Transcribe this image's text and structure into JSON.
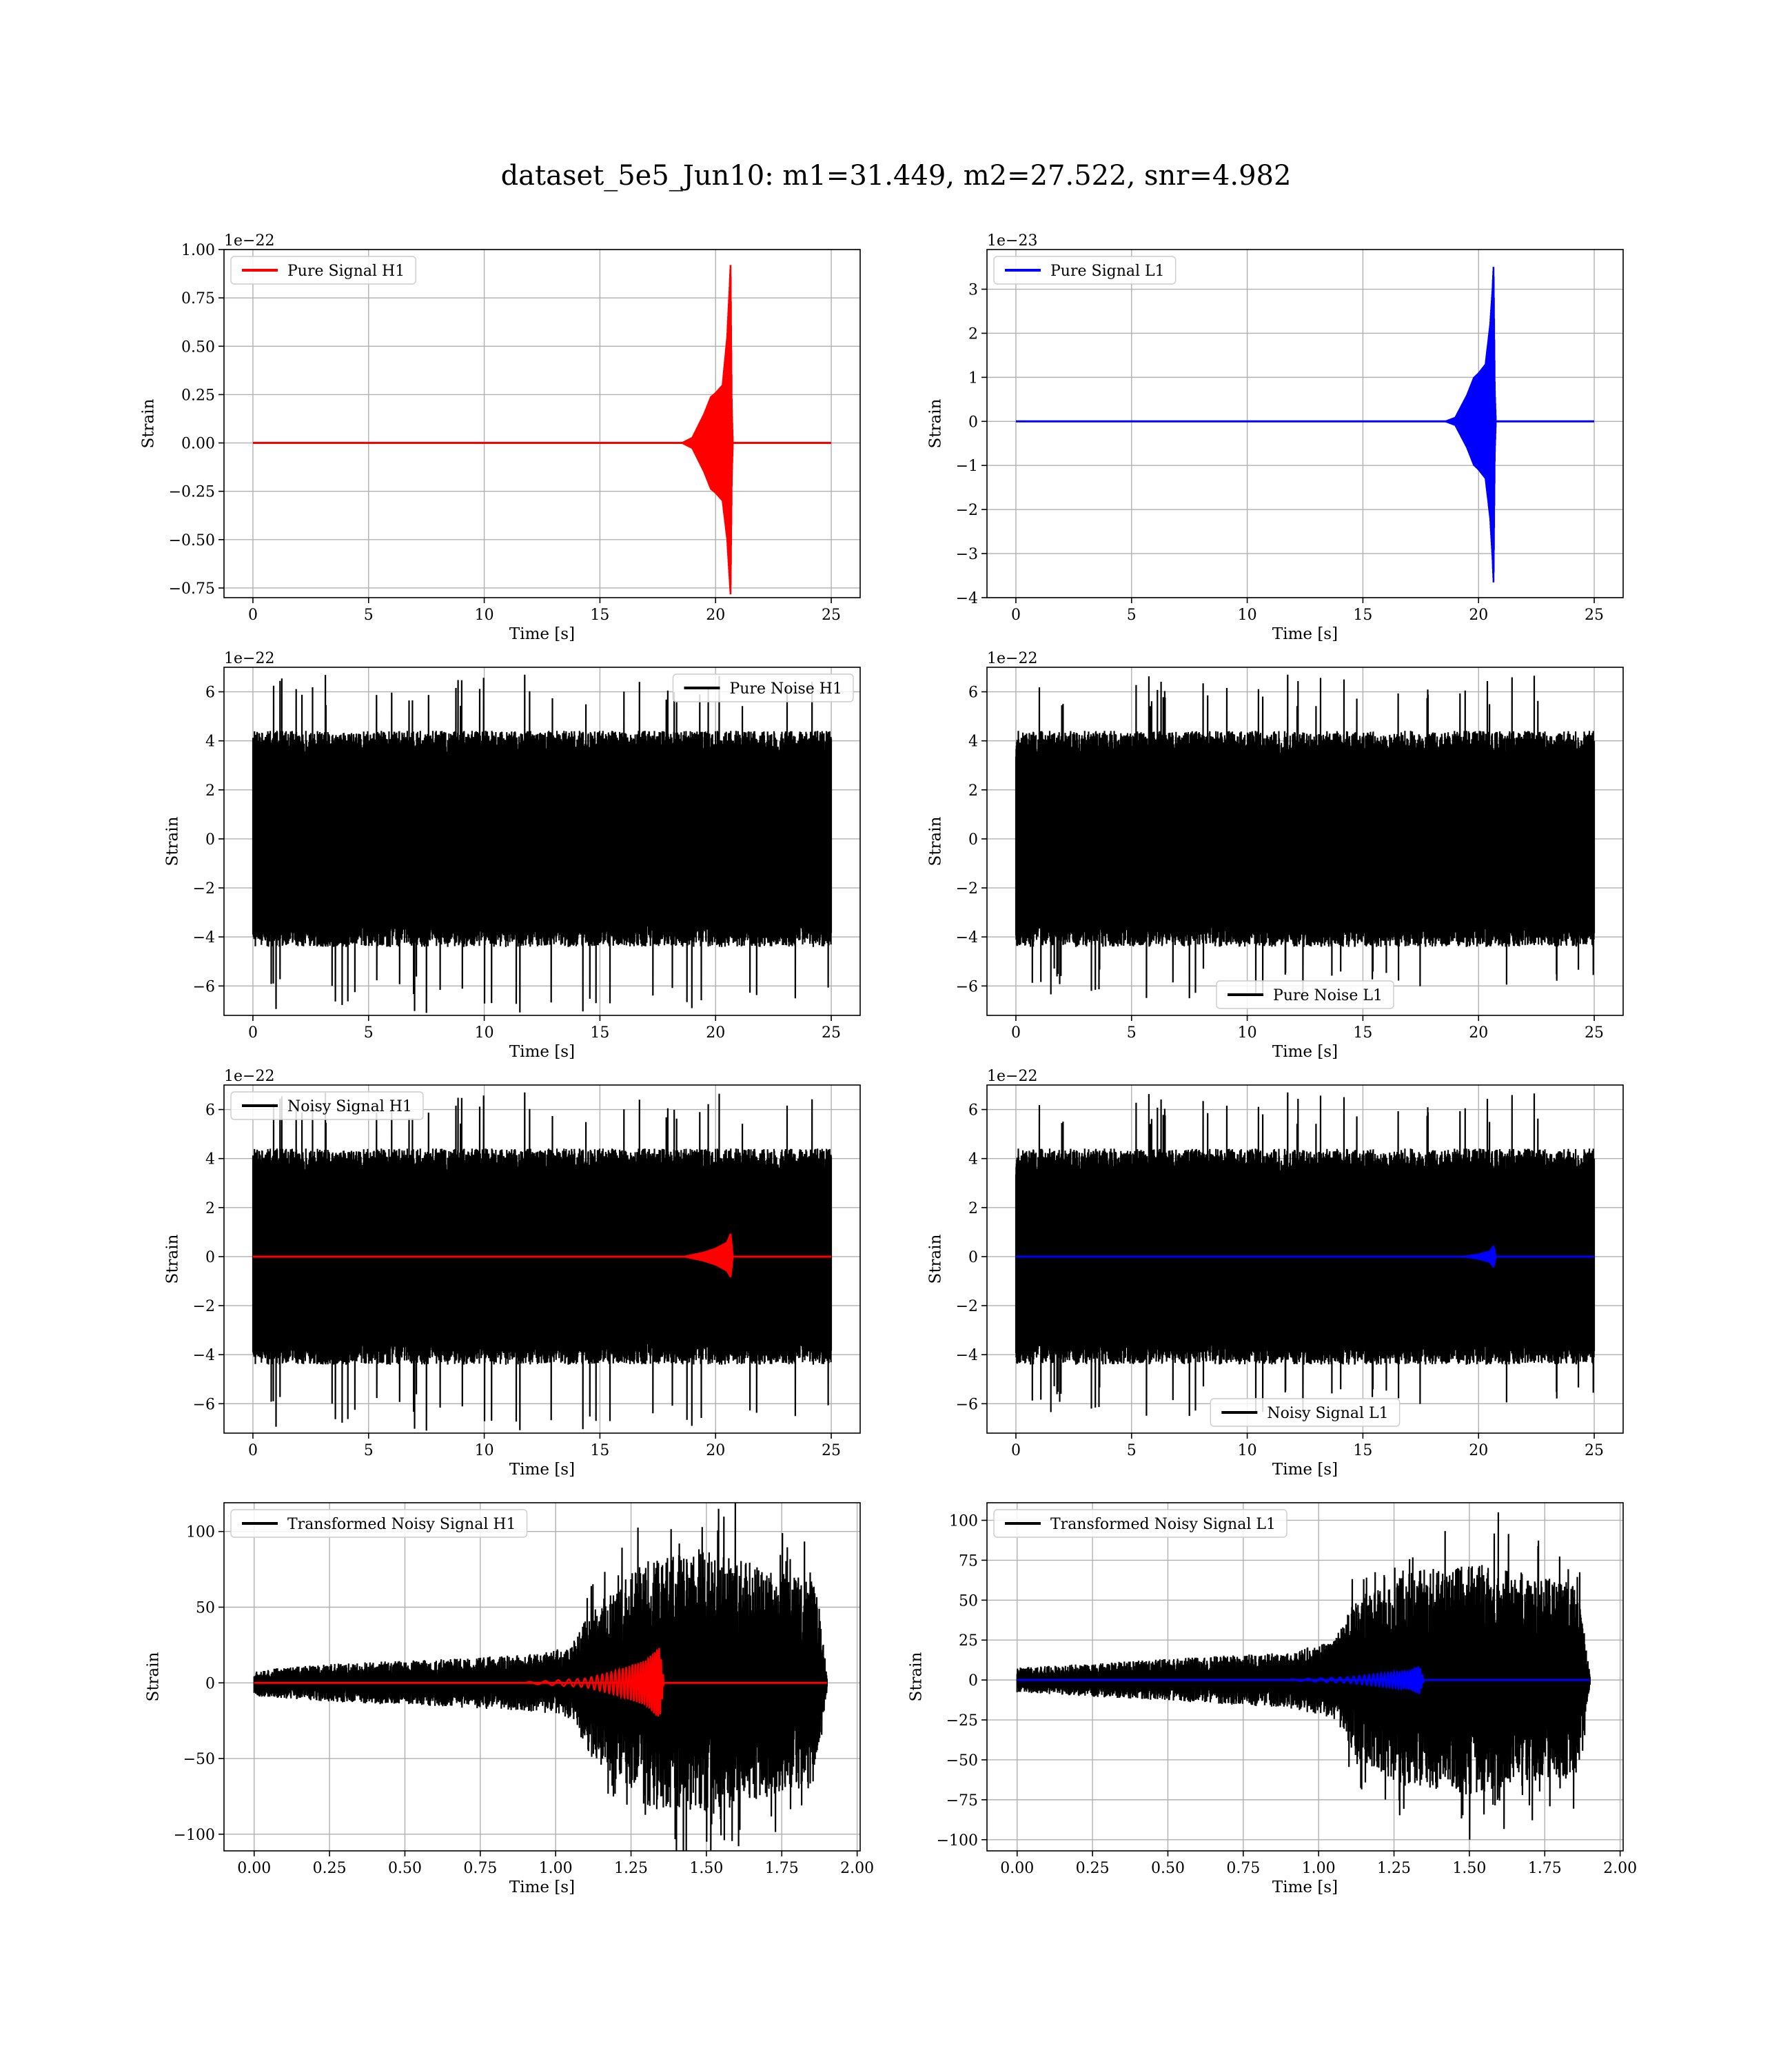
{
  "figure": {
    "title": "dataset_5e5_Jun10: m1=31.449, m2=27.522, snr=4.982"
  },
  "colors": {
    "h1": "#ff0000",
    "l1": "#0000ff",
    "noise": "#000000",
    "grid": "#b0b0b0"
  },
  "chart_data": [
    {
      "id": "pure-signal-h1",
      "type": "line",
      "row": 0,
      "col": 0,
      "xlabel": "Time [s]",
      "ylabel": "Strain",
      "offset_text": "1e−22",
      "xlim": [
        -1.25,
        26.25
      ],
      "ylim": [
        -0.8,
        1.0
      ],
      "xticks": [
        0,
        5,
        10,
        15,
        20,
        25
      ],
      "xtick_labels": [
        "0",
        "5",
        "10",
        "15",
        "20",
        "25"
      ],
      "yticks": [
        -0.75,
        -0.5,
        -0.25,
        0.0,
        0.25,
        0.5,
        0.75,
        1.0
      ],
      "ytick_labels": [
        "−0.75",
        "−0.50",
        "−0.25",
        "0.00",
        "0.25",
        "0.50",
        "0.75",
        "1.00"
      ],
      "legend": {
        "position": "upper left"
      },
      "series": [
        {
          "name": "Pure Signal H1",
          "kind": "chirp",
          "color": "h1",
          "x": [
            0,
            25
          ],
          "merger_time": 20.65,
          "envelope_x": [
            18.5,
            19.0,
            19.5,
            19.8,
            20.0,
            20.3,
            20.5,
            20.6,
            20.65,
            20.7,
            20.75
          ],
          "envelope_hi": [
            0.0,
            0.03,
            0.15,
            0.24,
            0.26,
            0.3,
            0.55,
            0.8,
            0.93,
            0.2,
            0.0
          ],
          "envelope_lo": [
            0.0,
            -0.03,
            -0.15,
            -0.24,
            -0.26,
            -0.3,
            -0.5,
            -0.7,
            -0.79,
            -0.2,
            0.0
          ]
        }
      ]
    },
    {
      "id": "pure-signal-l1",
      "type": "line",
      "row": 0,
      "col": 1,
      "xlabel": "Time [s]",
      "ylabel": "Strain",
      "offset_text": "1e−23",
      "xlim": [
        -1.25,
        26.25
      ],
      "ylim": [
        -4.0,
        3.9
      ],
      "xticks": [
        0,
        5,
        10,
        15,
        20,
        25
      ],
      "xtick_labels": [
        "0",
        "5",
        "10",
        "15",
        "20",
        "25"
      ],
      "yticks": [
        -4,
        -3,
        -2,
        -1,
        0,
        1,
        2,
        3
      ],
      "ytick_labels": [
        "−4",
        "−3",
        "−2",
        "−1",
        "0",
        "1",
        "2",
        "3"
      ],
      "legend": {
        "position": "upper left"
      },
      "series": [
        {
          "name": "Pure Signal L1",
          "kind": "chirp",
          "color": "l1",
          "x": [
            0,
            25
          ],
          "merger_time": 20.65,
          "envelope_x": [
            18.5,
            19.0,
            19.5,
            19.8,
            20.0,
            20.3,
            20.5,
            20.6,
            20.65,
            20.7,
            20.75
          ],
          "envelope_hi": [
            0.0,
            0.1,
            0.6,
            1.0,
            1.1,
            1.3,
            2.2,
            3.0,
            3.55,
            0.8,
            0.0
          ],
          "envelope_lo": [
            0.0,
            -0.1,
            -0.6,
            -1.0,
            -1.1,
            -1.3,
            -2.2,
            -3.1,
            -3.7,
            -0.8,
            0.0
          ]
        }
      ]
    },
    {
      "id": "pure-noise-h1",
      "type": "line",
      "row": 1,
      "col": 0,
      "xlabel": "Time [s]",
      "ylabel": "Strain",
      "offset_text": "1e−22",
      "xlim": [
        -1.25,
        26.25
      ],
      "ylim": [
        -7.2,
        7.0
      ],
      "xticks": [
        0,
        5,
        10,
        15,
        20,
        25
      ],
      "xtick_labels": [
        "0",
        "5",
        "10",
        "15",
        "20",
        "25"
      ],
      "yticks": [
        -6,
        -4,
        -2,
        0,
        2,
        4,
        6
      ],
      "ytick_labels": [
        "−6",
        "−4",
        "−2",
        "0",
        "2",
        "4",
        "6"
      ],
      "legend": {
        "position": "upper right"
      },
      "series": [
        {
          "name": "Pure Noise H1",
          "kind": "noise",
          "color": "noise",
          "x": [
            0,
            25
          ],
          "core": 3.8,
          "peak_hi": 6.7,
          "peak_lo": -7.1,
          "seed": 11
        }
      ]
    },
    {
      "id": "pure-noise-l1",
      "type": "line",
      "row": 1,
      "col": 1,
      "xlabel": "Time [s]",
      "ylabel": "Strain",
      "offset_text": "1e−22",
      "xlim": [
        -1.25,
        26.25
      ],
      "ylim": [
        -7.2,
        7.0
      ],
      "xticks": [
        0,
        5,
        10,
        15,
        20,
        25
      ],
      "xtick_labels": [
        "0",
        "5",
        "10",
        "15",
        "20",
        "25"
      ],
      "yticks": [
        -6,
        -4,
        -2,
        0,
        2,
        4,
        6
      ],
      "ytick_labels": [
        "−6",
        "−4",
        "−2",
        "0",
        "2",
        "4",
        "6"
      ],
      "legend": {
        "position": "lower center"
      },
      "series": [
        {
          "name": "Pure Noise L1",
          "kind": "noise",
          "color": "noise",
          "x": [
            0,
            25
          ],
          "core": 3.8,
          "peak_hi": 6.7,
          "peak_lo": -6.5,
          "seed": 23
        }
      ]
    },
    {
      "id": "noisy-signal-h1",
      "type": "line",
      "row": 2,
      "col": 0,
      "xlabel": "Time [s]",
      "ylabel": "Strain",
      "offset_text": "1e−22",
      "xlim": [
        -1.25,
        26.25
      ],
      "ylim": [
        -7.2,
        7.0
      ],
      "xticks": [
        0,
        5,
        10,
        15,
        20,
        25
      ],
      "xtick_labels": [
        "0",
        "5",
        "10",
        "15",
        "20",
        "25"
      ],
      "yticks": [
        -6,
        -4,
        -2,
        0,
        2,
        4,
        6
      ],
      "ytick_labels": [
        "−6",
        "−4",
        "−2",
        "0",
        "2",
        "4",
        "6"
      ],
      "legend": {
        "position": "upper left"
      },
      "series": [
        {
          "name": "Noisy Signal H1",
          "kind": "noise",
          "color": "noise",
          "x": [
            0,
            25
          ],
          "core": 3.8,
          "peak_hi": 6.7,
          "peak_lo": -7.1,
          "seed": 11
        },
        {
          "kind": "chirp",
          "color": "h1",
          "x": [
            0,
            25
          ],
          "merger_time": 20.65,
          "envelope_x": [
            18.5,
            19.5,
            20.0,
            20.5,
            20.65,
            20.75
          ],
          "envelope_hi": [
            0.0,
            0.2,
            0.35,
            0.6,
            0.95,
            0.0
          ],
          "envelope_lo": [
            0.0,
            -0.2,
            -0.35,
            -0.6,
            -0.85,
            0.0
          ]
        }
      ]
    },
    {
      "id": "noisy-signal-l1",
      "type": "line",
      "row": 2,
      "col": 1,
      "xlabel": "Time [s]",
      "ylabel": "Strain",
      "offset_text": "1e−22",
      "xlim": [
        -1.25,
        26.25
      ],
      "ylim": [
        -7.2,
        7.0
      ],
      "xticks": [
        0,
        5,
        10,
        15,
        20,
        25
      ],
      "xtick_labels": [
        "0",
        "5",
        "10",
        "15",
        "20",
        "25"
      ],
      "yticks": [
        -6,
        -4,
        -2,
        0,
        2,
        4,
        6
      ],
      "ytick_labels": [
        "−6",
        "−4",
        "−2",
        "0",
        "2",
        "4",
        "6"
      ],
      "legend": {
        "position": "lower center"
      },
      "series": [
        {
          "name": "Noisy Signal L1",
          "kind": "noise",
          "color": "noise",
          "x": [
            0,
            25
          ],
          "core": 3.8,
          "peak_hi": 6.7,
          "peak_lo": -6.5,
          "seed": 23
        },
        {
          "kind": "chirp",
          "color": "l1",
          "x": [
            0,
            25
          ],
          "merger_time": 20.65,
          "envelope_x": [
            18.5,
            19.5,
            20.0,
            20.5,
            20.65,
            20.75
          ],
          "envelope_hi": [
            0.0,
            0.05,
            0.12,
            0.25,
            0.45,
            0.0
          ],
          "envelope_lo": [
            0.0,
            -0.05,
            -0.12,
            -0.25,
            -0.45,
            0.0
          ]
        }
      ]
    },
    {
      "id": "transformed-noisy-signal-h1",
      "type": "line",
      "row": 3,
      "col": 0,
      "xlabel": "Time [s]",
      "ylabel": "Strain",
      "offset_text": "",
      "xlim": [
        -0.1,
        2.01
      ],
      "ylim": [
        -111,
        119
      ],
      "xticks": [
        0.0,
        0.25,
        0.5,
        0.75,
        1.0,
        1.25,
        1.5,
        1.75,
        2.0
      ],
      "xtick_labels": [
        "0.00",
        "0.25",
        "0.50",
        "0.75",
        "1.00",
        "1.25",
        "1.50",
        "1.75",
        "2.00"
      ],
      "yticks": [
        -100,
        -50,
        0,
        50,
        100
      ],
      "ytick_labels": [
        "−100",
        "−50",
        "0",
        "50",
        "100"
      ],
      "legend": {
        "position": "upper left"
      },
      "series": [
        {
          "name": "Transformed Noisy Signal H1",
          "kind": "noise_env",
          "color": "noise",
          "x": [
            0,
            1.9
          ],
          "seed": 37,
          "envelope_x": [
            0.0,
            0.3,
            0.6,
            0.9,
            1.05,
            1.12,
            1.3,
            1.5,
            1.7,
            1.86,
            1.9
          ],
          "envelope": [
            8,
            12,
            14,
            17,
            22,
            45,
            75,
            80,
            68,
            62,
            3
          ],
          "peak_hi": 120,
          "peak_lo": -105
        },
        {
          "kind": "chirp_osc",
          "color": "h1",
          "x": [
            0,
            1.9
          ],
          "merger_time": 1.345,
          "envelope_x": [
            0.9,
            1.1,
            1.2,
            1.3,
            1.345,
            1.36
          ],
          "envelope": [
            0.5,
            3,
            8,
            15,
            24,
            0
          ]
        }
      ]
    },
    {
      "id": "transformed-noisy-signal-l1",
      "type": "line",
      "row": 3,
      "col": 1,
      "xlabel": "Time [s]",
      "ylabel": "Strain",
      "offset_text": "",
      "xlim": [
        -0.1,
        2.01
      ],
      "ylim": [
        -107,
        111
      ],
      "xticks": [
        0.0,
        0.25,
        0.5,
        0.75,
        1.0,
        1.25,
        1.5,
        1.75,
        2.0
      ],
      "xtick_labels": [
        "0.00",
        "0.25",
        "0.50",
        "0.75",
        "1.00",
        "1.25",
        "1.50",
        "1.75",
        "2.00"
      ],
      "yticks": [
        -100,
        -75,
        -50,
        -25,
        0,
        25,
        50,
        75,
        100
      ],
      "ytick_labels": [
        "−100",
        "−75",
        "−50",
        "−25",
        "0",
        "25",
        "50",
        "75",
        "100"
      ],
      "legend": {
        "position": "upper left"
      },
      "series": [
        {
          "name": "Transformed Noisy Signal L1",
          "kind": "noise_env",
          "color": "noise",
          "x": [
            0,
            1.9
          ],
          "seed": 41,
          "envelope_x": [
            0.0,
            0.3,
            0.6,
            0.9,
            1.05,
            1.12,
            1.3,
            1.5,
            1.7,
            1.86,
            1.9
          ],
          "envelope": [
            7,
            10,
            13,
            16,
            22,
            45,
            62,
            66,
            60,
            55,
            3
          ],
          "peak_hi": 105,
          "peak_lo": -100
        },
        {
          "kind": "chirp_osc",
          "color": "l1",
          "x": [
            0,
            1.9
          ],
          "merger_time": 1.335,
          "envelope_x": [
            0.9,
            1.1,
            1.2,
            1.3,
            1.335,
            1.35
          ],
          "envelope": [
            0.3,
            2,
            4,
            6,
            9,
            0
          ]
        }
      ]
    }
  ]
}
